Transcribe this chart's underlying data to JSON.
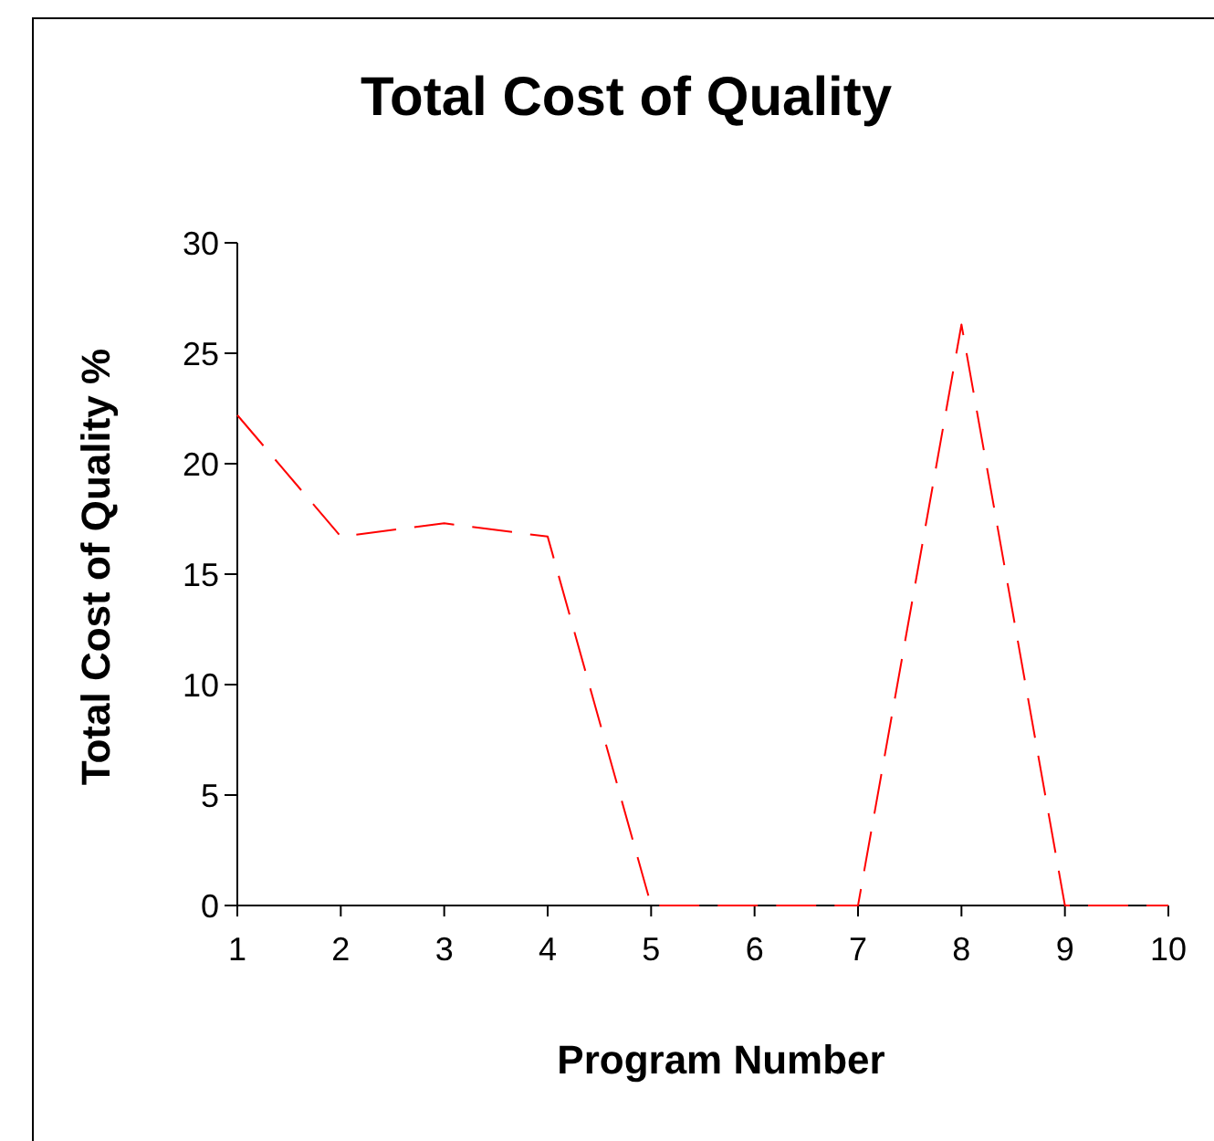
{
  "chart_data": {
    "type": "line",
    "title": "Total Cost of Quality",
    "xlabel": "Program Number",
    "ylabel": "Total Cost of Quality %",
    "categories": [
      "1",
      "2",
      "3",
      "4",
      "5",
      "6",
      "7",
      "8",
      "9",
      "10"
    ],
    "series": [
      {
        "color": "#ff0000",
        "values": [
          22.2,
          16.7,
          17.3,
          16.7,
          0,
          0,
          0,
          26.3,
          0,
          0
        ]
      }
    ],
    "ylim": [
      0,
      30
    ],
    "yticks": [
      0,
      5,
      10,
      15,
      20,
      25,
      30
    ],
    "grid": false,
    "marker": "none",
    "line_style": "dashed"
  }
}
